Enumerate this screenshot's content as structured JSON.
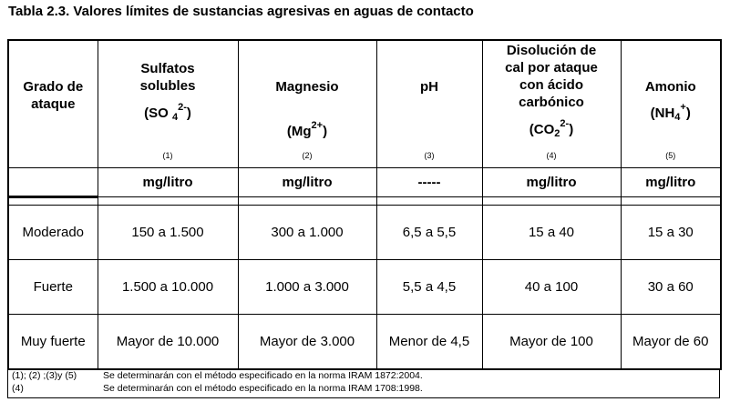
{
  "title": "Tabla 2.3. Valores límites de sustancias agresivas en aguas de contacto",
  "header": {
    "grade": [
      "Grado de",
      "ataque"
    ],
    "sulfatos": {
      "lines": [
        "Sulfatos",
        "solubles"
      ],
      "formula_pre": "(SO ",
      "formula_sub": "4",
      "formula_sup": "2-",
      "formula_post": ")",
      "note": "(1)"
    },
    "magnesio": {
      "line": "Magnesio",
      "formula_pre": "(Mg",
      "formula_sup": "2+",
      "formula_post": ")",
      "note": "(2)"
    },
    "ph": {
      "line": "pH",
      "note": "(3)"
    },
    "disolucion": {
      "lines": [
        "Disolución de",
        "cal por ataque",
        "con ácido",
        "carbónico"
      ],
      "formula_pre": "(CO",
      "formula_sub": "2",
      "formula_sup": "2-",
      "formula_post": ")",
      "note": "(4)"
    },
    "amonio": {
      "line": "Amonio",
      "formula_pre": "(NH",
      "formula_sub": "4",
      "formula_sup": "+",
      "formula_post": ")",
      "note": "(5)"
    }
  },
  "units": [
    "mg/litro",
    "mg/litro",
    "-----",
    "mg/litro",
    "mg/litro"
  ],
  "rows": [
    {
      "grade": "Moderado",
      "values": [
        "150  a  1.500",
        "300  a  1.000",
        "6,5  a  5,5",
        "15  a  40",
        "15  a  30"
      ]
    },
    {
      "grade": "Fuerte",
      "values": [
        "1.500  a  10.000",
        "1.000  a  3.000",
        "5,5  a  4,5",
        "40  a  100",
        "30  a  60"
      ]
    },
    {
      "grade": "Muy fuerte",
      "values": [
        "Mayor  de  10.000",
        "Mayor  de  3.000",
        "Menor de 4,5",
        "Mayor de  100",
        "Mayor de 60"
      ]
    }
  ],
  "notes": [
    {
      "ref": "(1); (2) ;(3)y (5)",
      "text": "Se determinarán con el método especificado en la norma IRAM 1872:2004."
    },
    {
      "ref": "(4)",
      "text": "Se determinarán con el método especificado en la norma IRAM 1708:1998."
    }
  ]
}
